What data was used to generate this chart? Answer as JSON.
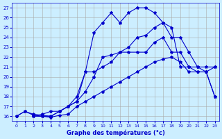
{
  "xlabel": "Graphe des températures (°c)",
  "bg_color": "#cceeff",
  "line_color": "#0000cc",
  "grid_color": "#aaaaaa",
  "xlim": [
    -0.5,
    23.5
  ],
  "ylim": [
    15.5,
    27.5
  ],
  "xticks": [
    0,
    1,
    2,
    3,
    4,
    5,
    6,
    7,
    8,
    9,
    10,
    11,
    12,
    13,
    14,
    15,
    16,
    17,
    18,
    19,
    20,
    21,
    22,
    23
  ],
  "yticks": [
    16,
    17,
    18,
    19,
    20,
    21,
    22,
    23,
    24,
    25,
    26,
    27
  ],
  "line1_x": [
    0,
    1,
    2,
    3,
    4,
    5,
    6,
    7,
    8,
    9,
    10,
    11,
    12,
    13,
    14,
    15,
    16,
    17,
    18,
    19,
    20,
    21,
    22,
    23
  ],
  "line1_y": [
    16.0,
    16.5,
    16.1,
    16.0,
    15.9,
    16.1,
    16.2,
    17.0,
    17.5,
    18.0,
    18.5,
    19.0,
    19.5,
    20.0,
    20.5,
    21.0,
    21.5,
    21.8,
    22.0,
    21.5,
    20.5,
    20.5,
    20.5,
    18.0
  ],
  "line2_x": [
    0,
    1,
    2,
    3,
    4,
    5,
    6,
    7,
    8,
    9,
    10,
    11,
    12,
    13,
    14,
    15,
    16,
    17,
    18,
    19,
    20,
    21,
    22,
    23
  ],
  "line2_y": [
    16.0,
    16.5,
    16.2,
    16.1,
    16.0,
    16.5,
    17.0,
    17.5,
    18.5,
    20.0,
    22.0,
    22.2,
    22.5,
    23.0,
    24.0,
    24.2,
    25.0,
    25.5,
    24.0,
    24.0,
    22.5,
    21.0,
    20.5,
    18.0
  ],
  "line3_x": [
    2,
    3,
    4,
    5,
    6,
    7,
    8,
    9,
    10,
    11,
    12,
    13,
    14,
    15,
    16,
    17,
    18,
    19,
    20,
    21,
    22,
    23
  ],
  "line3_y": [
    16.0,
    16.0,
    16.0,
    16.5,
    17.0,
    18.0,
    20.5,
    24.5,
    25.5,
    26.5,
    25.5,
    26.5,
    27.0,
    27.0,
    26.5,
    25.5,
    25.0,
    21.0,
    21.0,
    21.0,
    21.0,
    21.0
  ],
  "line4_x": [
    2,
    3,
    4,
    5,
    6,
    7,
    8,
    9,
    10,
    11,
    12,
    13,
    14,
    15,
    16,
    17,
    18,
    19,
    20,
    21,
    22,
    23
  ],
  "line4_y": [
    16.0,
    16.2,
    16.5,
    16.5,
    17.0,
    17.5,
    20.5,
    20.5,
    21.0,
    21.5,
    22.5,
    22.5,
    22.5,
    22.5,
    23.5,
    24.0,
    22.5,
    22.5,
    21.0,
    20.5,
    20.5,
    21.0
  ]
}
